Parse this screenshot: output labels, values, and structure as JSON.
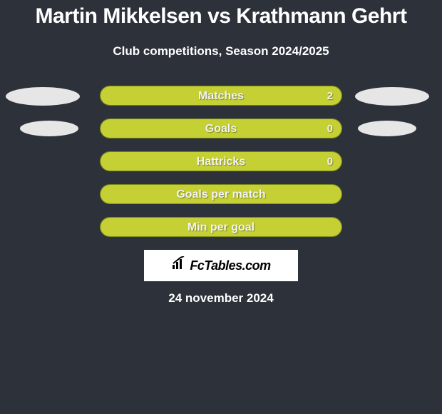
{
  "title": "Martin Mikkelsen vs Krathmann Gehrt",
  "subtitle": "Club competitions, Season 2024/2025",
  "date": "24 november 2024",
  "brand": "FcTables.com",
  "colors": {
    "background": "#2c313a",
    "bar_fill": "#c4d034",
    "bar_border": "#7a8716",
    "photo_placeholder": "#e6e6e6",
    "text": "#ffffff"
  },
  "stats": [
    {
      "label": "Matches",
      "left_value": "",
      "right_value": "2",
      "left_fill_pct": 0,
      "right_fill_pct": 100,
      "show_photos": true,
      "photo_size": "big"
    },
    {
      "label": "Goals",
      "left_value": "",
      "right_value": "0",
      "left_fill_pct": 0,
      "right_fill_pct": 100,
      "show_photos": true,
      "photo_size": "small"
    },
    {
      "label": "Hattricks",
      "left_value": "",
      "right_value": "0",
      "left_fill_pct": 0,
      "right_fill_pct": 100,
      "show_photos": false
    },
    {
      "label": "Goals per match",
      "left_value": "",
      "right_value": "",
      "left_fill_pct": 0,
      "right_fill_pct": 100,
      "show_photos": false
    },
    {
      "label": "Min per goal",
      "left_value": "",
      "right_value": "",
      "left_fill_pct": 0,
      "right_fill_pct": 100,
      "show_photos": false
    }
  ]
}
